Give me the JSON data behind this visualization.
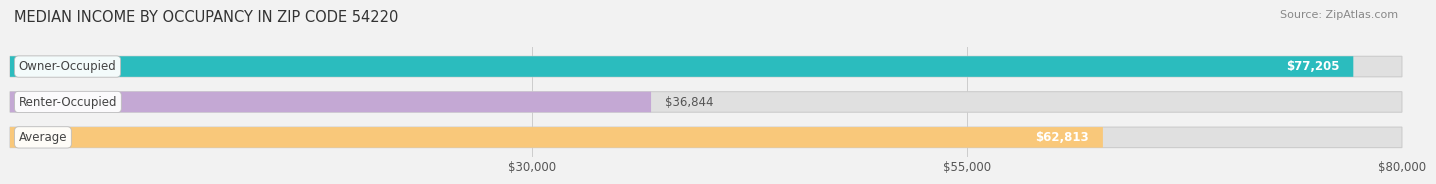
{
  "title": "MEDIAN INCOME BY OCCUPANCY IN ZIP CODE 54220",
  "source": "Source: ZipAtlas.com",
  "categories": [
    "Owner-Occupied",
    "Renter-Occupied",
    "Average"
  ],
  "values": [
    77205,
    36844,
    62813
  ],
  "bar_colors": [
    "#2BBCBE",
    "#C4A8D4",
    "#F9C87A"
  ],
  "bar_labels": [
    "$77,205",
    "$36,844",
    "$62,813"
  ],
  "label_inside": [
    true,
    false,
    true
  ],
  "xlim": [
    0,
    85000
  ],
  "xmin": 0,
  "xmax": 80000,
  "xticks": [
    30000,
    55000,
    80000
  ],
  "xtick_labels": [
    "$30,000",
    "$55,000",
    "$80,000"
  ],
  "background_color": "#f2f2f2",
  "bar_bg_color": "#e0e0e0",
  "title_fontsize": 10.5,
  "source_fontsize": 8,
  "label_fontsize": 8.5,
  "tick_fontsize": 8.5,
  "bar_height": 0.58,
  "bar_edge_color": "#cccccc",
  "cat_label_color": "#444444",
  "value_label_color_inside": "#ffffff",
  "value_label_color_outside": "#555555",
  "grid_color": "#cccccc"
}
